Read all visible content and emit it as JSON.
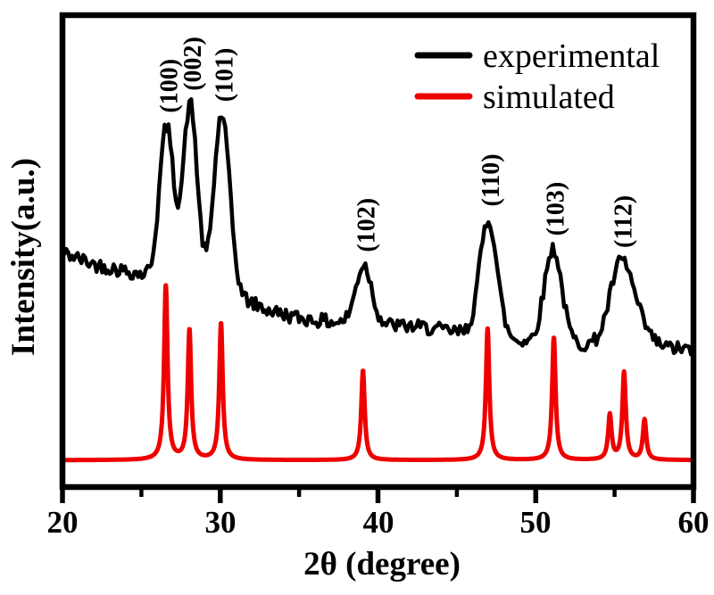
{
  "figure": {
    "background": "#ffffff",
    "frame_color": "#000000",
    "xlabel": "2θ (degree)",
    "ylabel": "Intensity(a.u.)",
    "x_tick_labels": [
      "20",
      "30",
      "40",
      "50",
      "60"
    ],
    "legend": [
      {
        "label": "experimental",
        "color": "#000000"
      },
      {
        "label": "simulated",
        "color": "#ee0000"
      }
    ]
  },
  "chart_data": {
    "type": "line",
    "title": "",
    "xlabel": "2θ (degree)",
    "ylabel": "Intensity(a.u.)",
    "xlim": [
      20,
      60
    ],
    "y_axis": "arbitrary units, no ticks, no grid",
    "grid": false,
    "legend_position": "top-right",
    "x_major_ticks": [
      20,
      30,
      40,
      50,
      60
    ],
    "x_minor_ticks": [
      25,
      35,
      45,
      55
    ],
    "series": [
      {
        "name": "experimental",
        "color": "#000000",
        "line_width": 4.5,
        "profile": "gaussian-peaks-on-sloping-noisy-baseline",
        "noise_amplitude": 0.015,
        "noise_seed": 42,
        "baseline_anchors": [
          [
            20,
            0.497
          ],
          [
            22,
            0.472
          ],
          [
            24,
            0.458
          ],
          [
            25.5,
            0.448
          ],
          [
            27,
            0.43
          ],
          [
            29,
            0.415
          ],
          [
            31,
            0.405
          ],
          [
            33,
            0.375
          ],
          [
            35,
            0.358
          ],
          [
            37,
            0.35
          ],
          [
            40,
            0.345
          ],
          [
            43,
            0.338
          ],
          [
            45,
            0.328
          ],
          [
            47,
            0.318
          ],
          [
            49,
            0.31
          ],
          [
            51,
            0.306
          ],
          [
            53,
            0.302
          ],
          [
            55,
            0.3
          ],
          [
            57,
            0.3
          ],
          [
            60,
            0.29
          ]
        ],
        "peaks": [
          {
            "center": 26.6,
            "amplitude": 0.33,
            "sigma": 0.45,
            "hkl": "(100)"
          },
          {
            "center": 28.1,
            "amplitude": 0.39,
            "sigma": 0.45,
            "hkl": "(002)"
          },
          {
            "center": 30.1,
            "amplitude": 0.38,
            "sigma": 0.5,
            "hkl": "(101)"
          },
          {
            "center": 39.1,
            "amplitude": 0.125,
            "sigma": 0.5,
            "hkl": "(102)"
          },
          {
            "center": 47.0,
            "amplitude": 0.25,
            "sigma": 0.55,
            "hkl": "(110)"
          },
          {
            "center": 51.1,
            "amplitude": 0.2,
            "sigma": 0.55,
            "hkl": "(103)"
          },
          {
            "center": 55.4,
            "amplitude": 0.17,
            "sigma": 0.7,
            "hkl": "(112)"
          },
          {
            "center": 56.5,
            "amplitude": 0.035,
            "sigma": 0.7,
            "hkl": ""
          }
        ]
      },
      {
        "name": "simulated",
        "color": "#ee0000",
        "line_width": 5,
        "profile": "lorentzian-peaks-on-flat-baseline",
        "baseline": 0.057,
        "hwhm": 0.13,
        "peaks": [
          {
            "center": 26.55,
            "amplitude": 0.37
          },
          {
            "center": 28.05,
            "amplitude": 0.275
          },
          {
            "center": 30.05,
            "amplitude": 0.29
          },
          {
            "center": 39.05,
            "amplitude": 0.19
          },
          {
            "center": 46.95,
            "amplitude": 0.28
          },
          {
            "center": 51.15,
            "amplitude": 0.26
          },
          {
            "center": 54.7,
            "amplitude": 0.095
          },
          {
            "center": 55.6,
            "amplitude": 0.185
          },
          {
            "center": 56.9,
            "amplitude": 0.085
          }
        ]
      }
    ],
    "peak_labels": [
      {
        "text": "(100)",
        "two_theta": 26.6
      },
      {
        "text": "(002)",
        "two_theta": 28.1
      },
      {
        "text": "(101)",
        "two_theta": 30.1
      },
      {
        "text": "(102)",
        "two_theta": 39.1
      },
      {
        "text": "(110)",
        "two_theta": 47.0
      },
      {
        "text": "(103)",
        "two_theta": 51.1
      },
      {
        "text": "(112)",
        "two_theta": 55.4
      }
    ]
  }
}
